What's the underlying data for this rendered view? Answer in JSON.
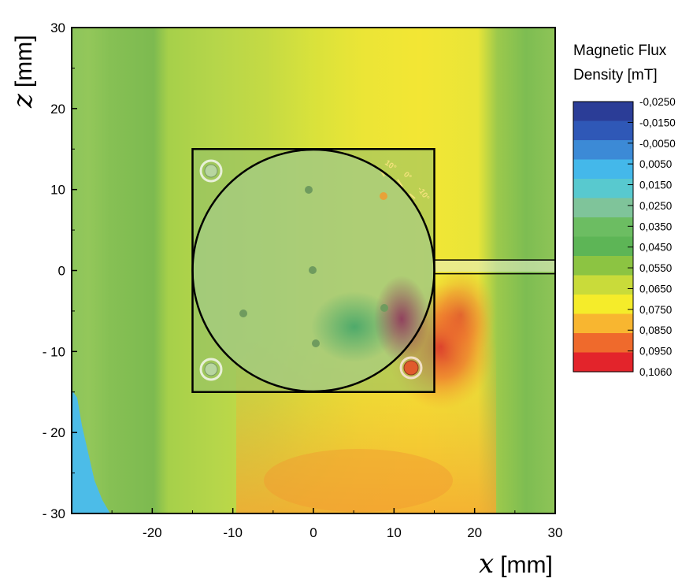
{
  "chart_data": {
    "type": "heatmap",
    "title": "",
    "xlabel": {
      "var": "x",
      "unit": "[mm]"
    },
    "ylabel": {
      "var": "z",
      "unit": "[mm]"
    },
    "xlim": [
      -30,
      30
    ],
    "ylim": [
      -30,
      30
    ],
    "xticks": [
      -20,
      -10,
      0,
      10,
      20,
      30
    ],
    "xtick_labels": [
      "-20",
      "-10",
      "0",
      "10",
      "20",
      "30"
    ],
    "yticks": [
      30,
      20,
      10,
      0,
      -10,
      -20,
      -30
    ],
    "ytick_labels": [
      "30",
      "20",
      "10",
      "0",
      "- 10",
      "- 20",
      "- 30"
    ],
    "colorbar": {
      "title_lines": [
        "Magnetic Flux",
        "Density [mT]"
      ],
      "levels": [
        "-0,0250",
        "-0,0150",
        "-0,0050",
        "0,0050",
        "0,0150",
        "0,0250",
        "0,0350",
        "0,0450",
        "0,0550",
        "0,0650",
        "0,0750",
        "0,0850",
        "0,0950",
        "0,1060"
      ],
      "colors": [
        "#2b3d97",
        "#2f58b7",
        "#3c8ad6",
        "#44b8ea",
        "#58c9cf",
        "#7fc49a",
        "#6cbd62",
        "#5db556",
        "#8cc442",
        "#c9db3a",
        "#f5ec2a",
        "#f8b630",
        "#ef6a2c",
        "#e3242b"
      ]
    },
    "field_bands": [
      {
        "x_from": -30,
        "x_to": -26,
        "value_mT": 0.045
      },
      {
        "x_from": -26,
        "x_to": -18,
        "value_mT": 0.05
      },
      {
        "x_from": -18,
        "x_to": -8,
        "value_mT": 0.058
      },
      {
        "x_from": -8,
        "x_to": 3,
        "value_mT": 0.066
      },
      {
        "x_from": 3,
        "x_to": 10,
        "value_mT": 0.072
      },
      {
        "x_from": 10,
        "x_to": 17,
        "value_mT": 0.076
      },
      {
        "x_from": 17,
        "x_to": 22,
        "value_mT": 0.07
      },
      {
        "x_from": 22,
        "x_to": 30,
        "value_mT": 0.045
      }
    ],
    "annotations": {
      "device_square": {
        "x": [
          -15,
          15
        ],
        "z": [
          -15,
          15
        ]
      },
      "device_circle": {
        "cx": 0,
        "cz": 0,
        "r": 15
      },
      "channel": {
        "x": [
          15,
          30
        ],
        "z": [
          -0.4,
          1.3
        ]
      },
      "angle_marks": [
        "10°",
        "0°",
        "-10°"
      ]
    }
  }
}
